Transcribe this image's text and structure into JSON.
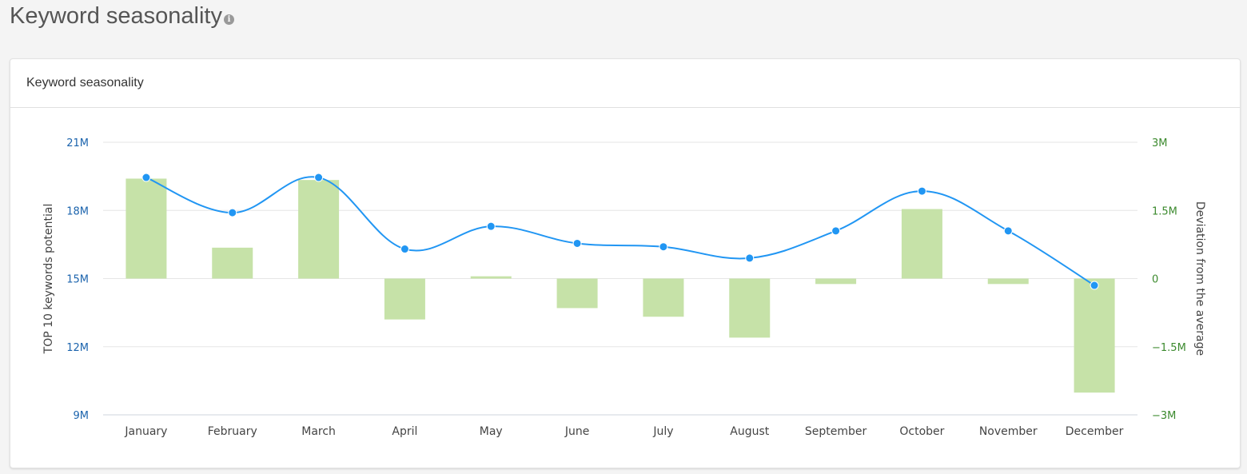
{
  "page": {
    "title": "Keyword seasonality",
    "info_icon": "info-icon"
  },
  "card": {
    "title": "Keyword seasonality"
  },
  "colors": {
    "line": "#2196f3",
    "bar": "#c6e2a8",
    "left_axis_text": "#1c64ad",
    "right_axis_text": "#3c8a2e",
    "grid": "#e6e6e6",
    "axis_title": "#444444"
  },
  "chart_data": {
    "type": "bar",
    "categories": [
      "January",
      "February",
      "March",
      "April",
      "May",
      "June",
      "July",
      "August",
      "September",
      "October",
      "November",
      "December"
    ],
    "left_axis": {
      "label": "TOP 10 keywords potential",
      "ylim": [
        9000000,
        21000000
      ],
      "ticks": [
        21000000,
        18000000,
        15000000,
        12000000,
        9000000
      ],
      "tick_labels": [
        "21M",
        "18M",
        "15M",
        "12M",
        "9M"
      ]
    },
    "right_axis": {
      "label": "Deviation from the average",
      "ylim": [
        -3000000,
        3000000
      ],
      "ticks": [
        3000000,
        1500000,
        0,
        -1500000,
        -3000000
      ],
      "tick_labels": [
        "3M",
        "1.5M",
        "0",
        "−1.5M",
        "−3M"
      ]
    },
    "series": [
      {
        "type": "line",
        "axis": "left",
        "values": [
          19450000,
          17900000,
          19450000,
          16300000,
          17300000,
          16550000,
          16400000,
          15900000,
          17100000,
          18850000,
          17100000,
          14700000
        ]
      },
      {
        "type": "bar",
        "axis": "right",
        "values": [
          2200000,
          680000,
          2170000,
          -900000,
          50000,
          -650000,
          -840000,
          -1300000,
          -120000,
          1530000,
          -120000,
          -2510000
        ]
      }
    ],
    "grid": true
  }
}
